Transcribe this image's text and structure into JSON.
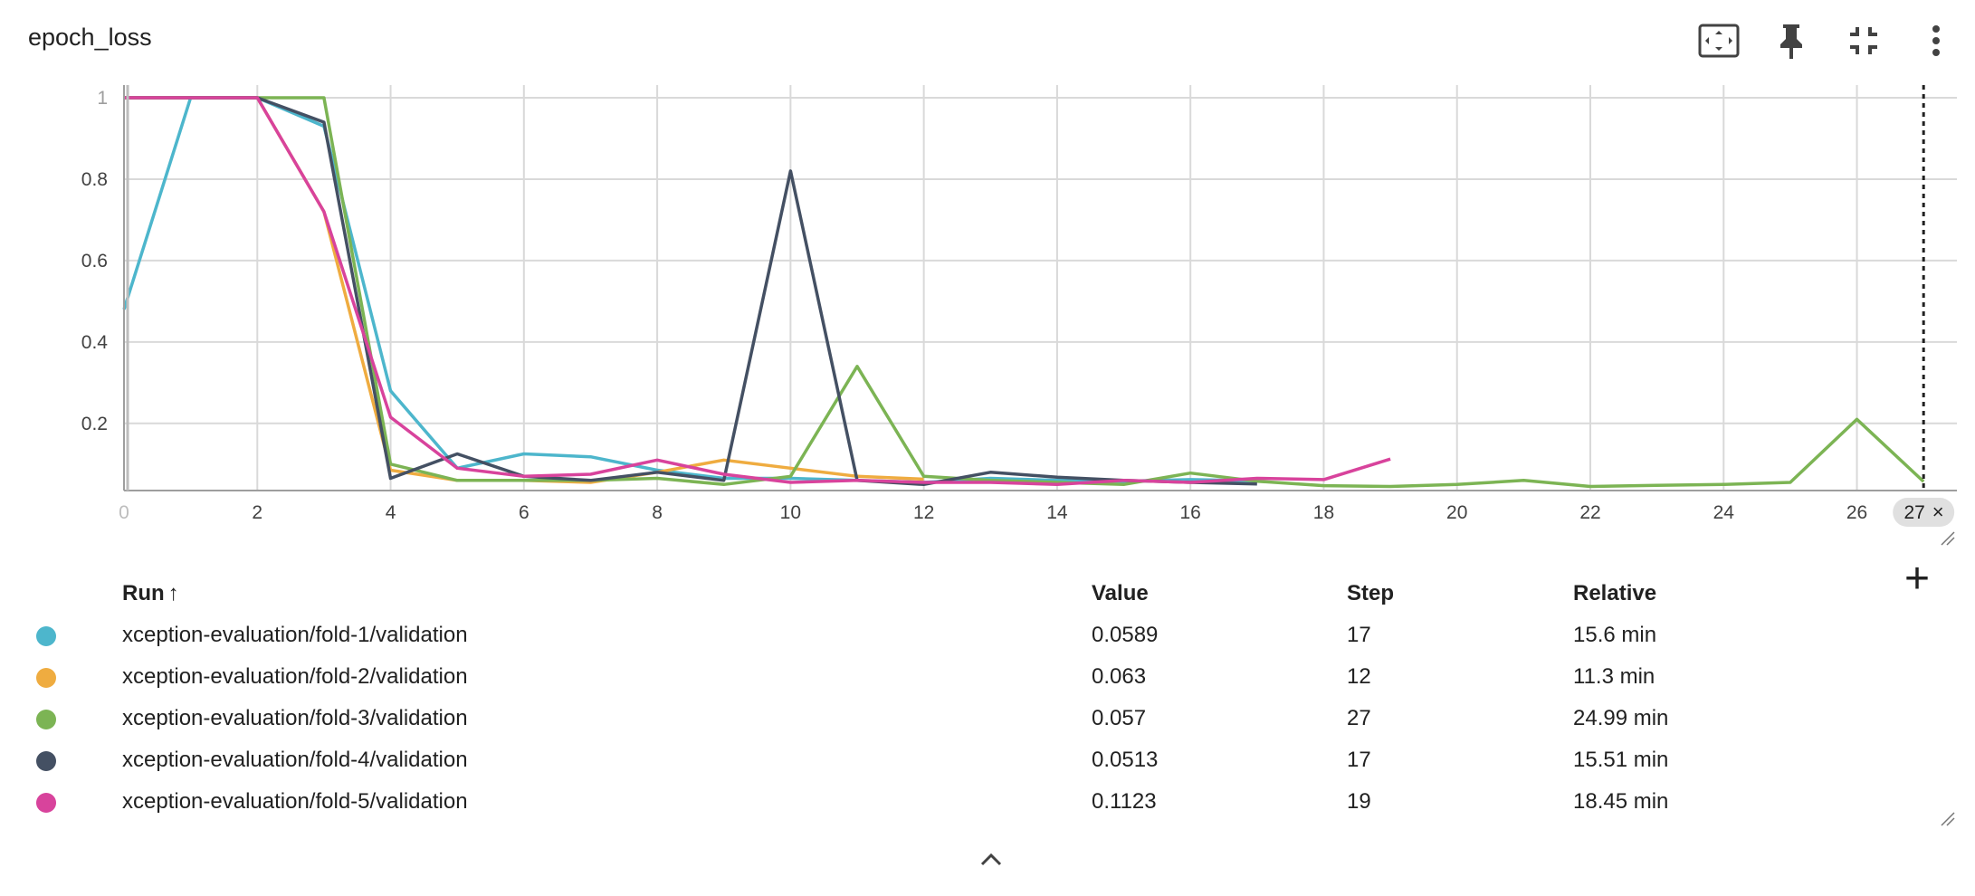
{
  "card": {
    "title": "epoch_loss"
  },
  "toolbar": [
    {
      "icon": "fit-to-data-icon"
    },
    {
      "icon": "pin-icon"
    },
    {
      "icon": "collapse-fullscreen-icon"
    },
    {
      "icon": "more-vert-icon"
    }
  ],
  "chart_data": {
    "type": "line",
    "title": "",
    "xlabel": "",
    "ylabel": "",
    "xlim": [
      0,
      27.5
    ],
    "ylim": [
      0.035,
      1.02
    ],
    "grid": true,
    "legend": "table-below",
    "x_ticks": [
      "0",
      "2",
      "4",
      "6",
      "8",
      "10",
      "12",
      "14",
      "16",
      "18",
      "20",
      "22",
      "24",
      "26"
    ],
    "y_ticks": [
      "1",
      "0.8",
      "0.6",
      "0.4",
      "0.2"
    ],
    "hover_step": "27",
    "series": [
      {
        "name": "xception-evaluation/fold-1/validation",
        "color": "#4db6cc",
        "x": [
          0,
          1,
          2,
          3,
          4,
          5,
          6,
          7,
          8,
          9,
          10,
          11,
          12,
          13,
          14,
          15,
          16,
          17
        ],
        "y": [
          0.48,
          1.0,
          1.0,
          0.93,
          0.28,
          0.09,
          0.125,
          0.118,
          0.085,
          0.065,
          0.065,
          0.06,
          0.055,
          0.065,
          0.06,
          0.058,
          0.062,
          0.0589
        ]
      },
      {
        "name": "xception-evaluation/fold-2/validation",
        "color": "#efac40",
        "x": [
          0,
          1,
          2,
          3,
          4,
          5,
          6,
          7,
          8,
          9,
          10,
          11,
          12
        ],
        "y": [
          1.0,
          1.0,
          1.0,
          0.72,
          0.085,
          0.06,
          0.06,
          0.055,
          0.08,
          0.11,
          0.09,
          0.07,
          0.063
        ]
      },
      {
        "name": "xception-evaluation/fold-3/validation",
        "color": "#7cb454",
        "x": [
          0,
          1,
          2,
          3,
          4,
          5,
          6,
          7,
          8,
          9,
          10,
          11,
          12,
          13,
          14,
          15,
          16,
          17,
          18,
          19,
          20,
          21,
          22,
          23,
          24,
          25,
          26,
          27
        ],
        "y": [
          1.0,
          1.0,
          1.0,
          1.0,
          0.1,
          0.06,
          0.06,
          0.06,
          0.065,
          0.05,
          0.07,
          0.34,
          0.07,
          0.06,
          0.055,
          0.05,
          0.078,
          0.058,
          0.047,
          0.045,
          0.05,
          0.06,
          0.045,
          0.048,
          0.05,
          0.055,
          0.21,
          0.057
        ]
      },
      {
        "name": "xception-evaluation/fold-4/validation",
        "color": "#445063",
        "x": [
          0,
          1,
          2,
          3,
          4,
          5,
          6,
          7,
          8,
          9,
          10,
          11,
          12,
          13,
          14,
          15,
          16,
          17
        ],
        "y": [
          1.0,
          1.0,
          1.0,
          0.94,
          0.065,
          0.125,
          0.07,
          0.06,
          0.08,
          0.06,
          0.82,
          0.06,
          0.05,
          0.08,
          0.068,
          0.06,
          0.055,
          0.0513
        ]
      },
      {
        "name": "xception-evaluation/fold-5/validation",
        "color": "#d8439c",
        "x": [
          0,
          1,
          2,
          3,
          4,
          5,
          6,
          7,
          8,
          9,
          10,
          11,
          12,
          13,
          14,
          15,
          16,
          17,
          18,
          19
        ],
        "y": [
          1.0,
          1.0,
          1.0,
          0.72,
          0.215,
          0.09,
          0.07,
          0.075,
          0.11,
          0.075,
          0.055,
          0.06,
          0.055,
          0.055,
          0.05,
          0.06,
          0.055,
          0.065,
          0.062,
          0.1123
        ]
      }
    ]
  },
  "table": {
    "headers": {
      "run": "Run",
      "sort_arrow": "↑",
      "value": "Value",
      "step": "Step",
      "relative": "Relative"
    },
    "rows": [
      {
        "color": "#4db6cc",
        "run": "xception-evaluation/fold-1/validation",
        "value": "0.0589",
        "step": "17",
        "relative": "15.6 min"
      },
      {
        "color": "#efac40",
        "run": "xception-evaluation/fold-2/validation",
        "value": "0.063",
        "step": "12",
        "relative": "11.3 min"
      },
      {
        "color": "#7cb454",
        "run": "xception-evaluation/fold-3/validation",
        "value": "0.057",
        "step": "27",
        "relative": "24.99 min"
      },
      {
        "color": "#445063",
        "run": "xception-evaluation/fold-4/validation",
        "value": "0.0513",
        "step": "17",
        "relative": "15.51 min"
      },
      {
        "color": "#d8439c",
        "run": "xception-evaluation/fold-5/validation",
        "value": "0.1123",
        "step": "19",
        "relative": "18.45 min"
      }
    ]
  },
  "controls": {
    "add_label": "+",
    "collapse_icon": "chevron-up-icon"
  }
}
